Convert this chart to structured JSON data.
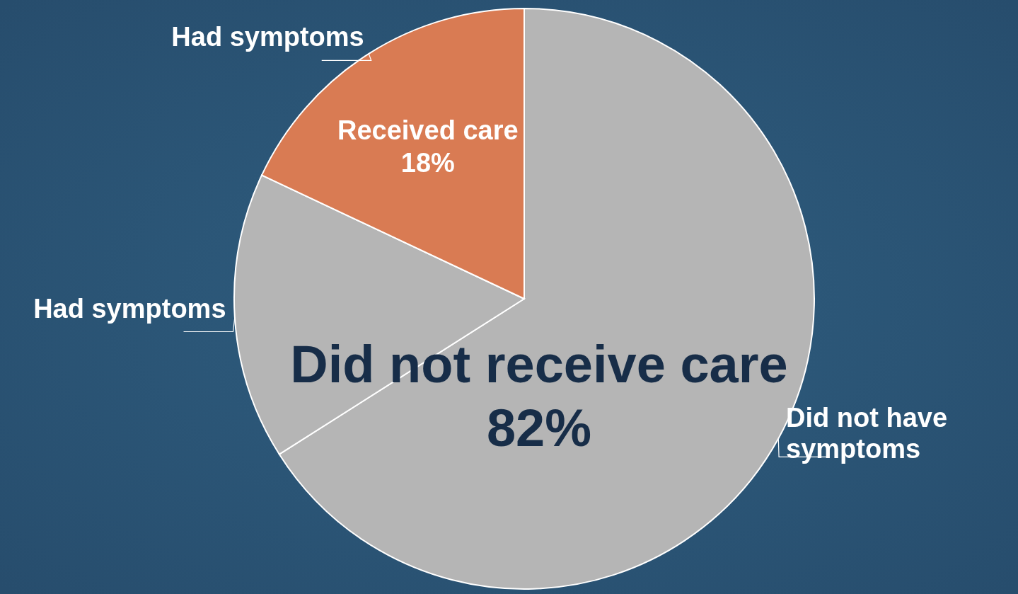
{
  "chart_data": {
    "type": "pie",
    "categories": [
      "Did not have symptoms",
      "Had symptoms",
      "Had symptoms"
    ],
    "values": [
      66,
      16,
      18
    ],
    "colors": [
      "#b5b5b5",
      "#b5b5b5",
      "#d97b53"
    ],
    "value_labels": [
      null,
      null,
      "Received care 18%"
    ],
    "annotations": [
      "Did not receive care 82%"
    ]
  }
}
